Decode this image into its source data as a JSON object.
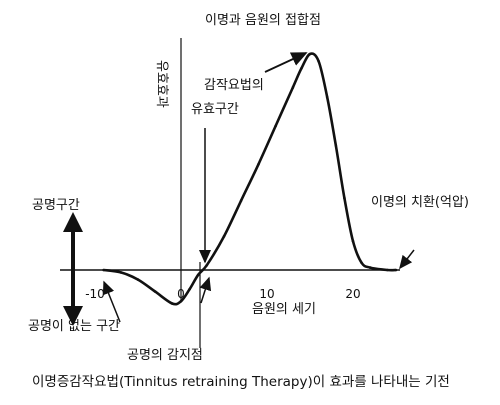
{
  "chart_data": {
    "type": "line",
    "xlabel": "음원의 세기",
    "ylabel": "유효효과",
    "x_ticks": [
      -10,
      0,
      10,
      20
    ],
    "xlim": [
      -10,
      25
    ],
    "ylim": [
      -0.2,
      1.0
    ],
    "series": [
      {
        "x": [
          -9,
          -7,
          -5,
          -3,
          -1,
          0,
          1,
          2,
          3,
          5,
          7,
          9,
          11,
          13,
          14,
          15,
          16,
          17,
          18,
          19,
          20,
          21,
          22,
          24,
          25
        ],
        "y": [
          0.0,
          -0.01,
          -0.04,
          -0.09,
          -0.14,
          -0.13,
          -0.08,
          -0.02,
          0.02,
          0.14,
          0.29,
          0.44,
          0.6,
          0.76,
          0.84,
          0.9,
          0.87,
          0.72,
          0.52,
          0.3,
          0.12,
          0.03,
          0.01,
          0.0,
          0.0
        ]
      }
    ],
    "annotations": {
      "peak": "이명과 음원의 접합점",
      "effective_range": [
        "감작요법의",
        "유효구간"
      ],
      "replacement": "이명의 치환(억압)",
      "tinnitus_zone": "공명구간",
      "no_tinnitus_zone": "공명이 없는 구간",
      "perception_point": "공명의 감지점"
    },
    "caption": "이명증감작요법(Tinnitus retraining Therapy)이 효과를 나타내는 기전"
  }
}
